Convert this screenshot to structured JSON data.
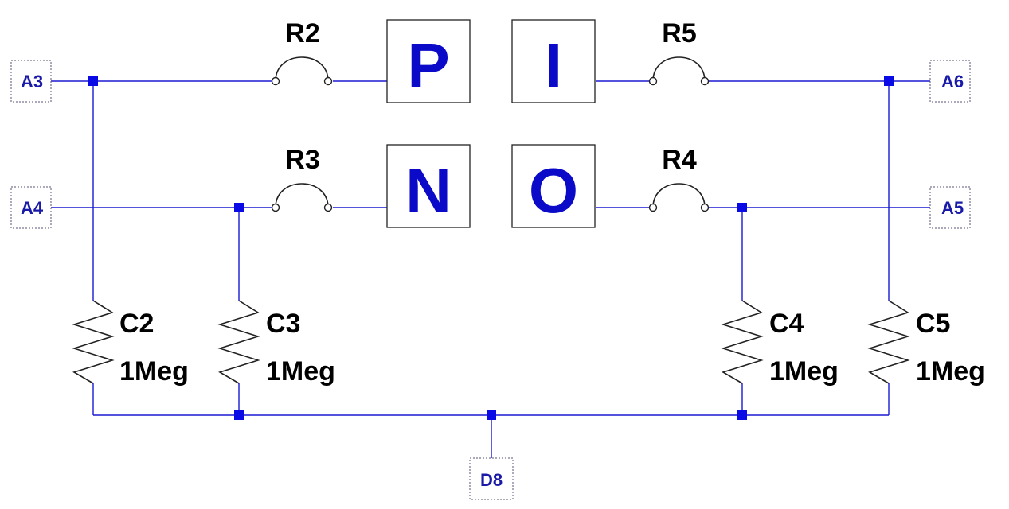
{
  "colors": {
    "wire": "#1a1ad4",
    "junction": "#0a0ae6",
    "box_letter": "#0a0ac8",
    "component": "#222222",
    "port_label": "#1a1aa8",
    "label": "#000000"
  },
  "ports": {
    "A3": "A3",
    "A4": "A4",
    "A5": "A5",
    "A6": "A6",
    "D8": "D8"
  },
  "switches": {
    "R2": "R2",
    "R3": "R3",
    "R4": "R4",
    "R5": "R5"
  },
  "boxes": {
    "P": "P",
    "I": "I",
    "N": "N",
    "O": "O"
  },
  "resistors": {
    "C2": {
      "name": "C2",
      "value": "1Meg"
    },
    "C3": {
      "name": "C3",
      "value": "1Meg"
    },
    "C4": {
      "name": "C4",
      "value": "1Meg"
    },
    "C5": {
      "name": "C5",
      "value": "1Meg"
    }
  }
}
